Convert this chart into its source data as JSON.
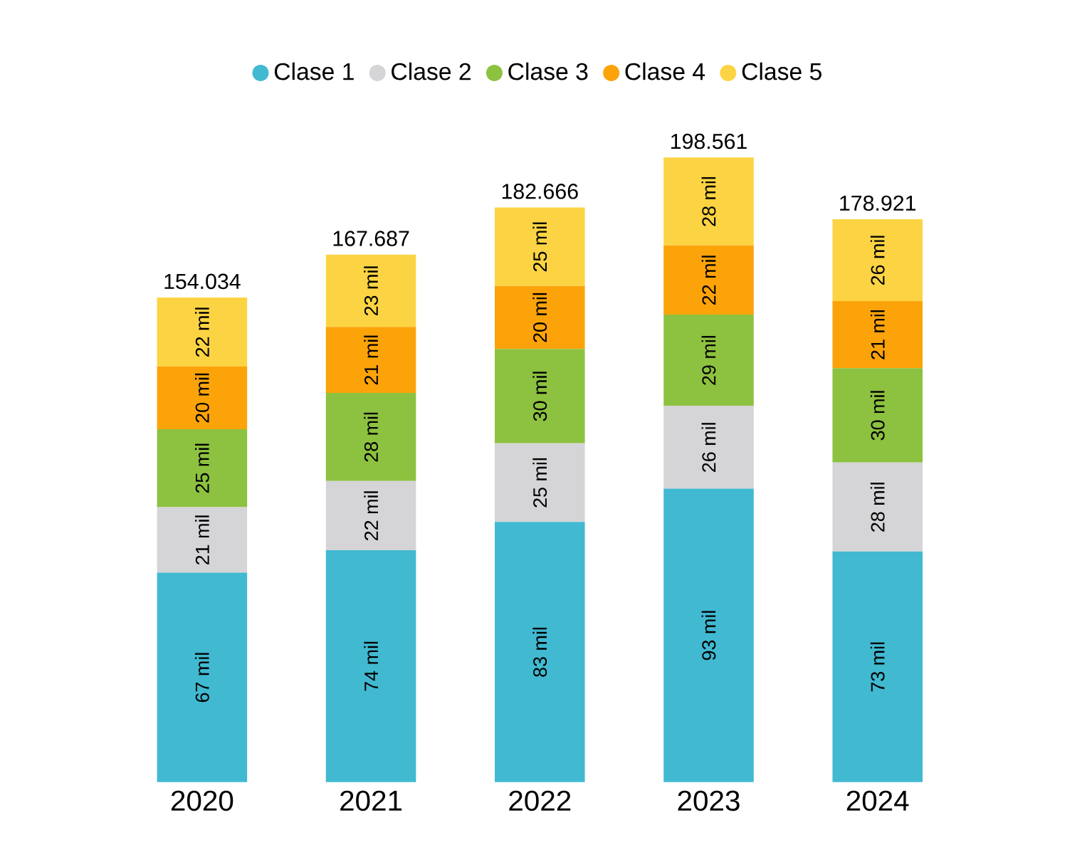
{
  "chart_data": {
    "type": "bar",
    "stacked": true,
    "legend": "top",
    "data_labels": false,
    "categories": [
      "2020",
      "2021",
      "2022",
      "2023",
      "2024"
    ],
    "series": [
      {
        "name": "Clase 1",
        "color": "#41b9d1",
        "values": [
          66.6,
          73.7,
          82.7,
          93.3,
          73.3
        ],
        "value_labels": [
          "67 mil",
          "74 mil",
          "83 mil",
          "93 mil",
          "73 mil"
        ]
      },
      {
        "name": "Clase 2",
        "color": "#d5d4d6",
        "values": [
          20.8,
          22,
          25,
          26.3,
          28.3
        ],
        "value_labels": [
          "21 mil",
          "22 mil",
          "25 mil",
          "26 mil",
          "28 mil"
        ]
      },
      {
        "name": "Clase 3",
        "color": "#8dc140",
        "values": [
          24.8,
          28,
          30,
          29,
          30
        ],
        "value_labels": [
          "25 mil",
          "28 mil",
          "30 mil",
          "29 mil",
          "30 mil"
        ]
      },
      {
        "name": "Clase 4",
        "color": "#fca30a",
        "values": [
          19.9,
          21,
          20,
          22,
          21.3
        ],
        "value_labels": [
          "20 mil",
          "21 mil",
          "20 mil",
          "22 mil",
          "21 mil"
        ]
      },
      {
        "name": "Clase 5",
        "color": "#fcd443",
        "values": [
          21.934,
          22.987,
          24.966,
          27.961,
          26.021
        ],
        "value_labels": [
          "22 mil",
          "23 mil",
          "25 mil",
          "28 mil",
          "26 mil"
        ]
      }
    ],
    "totals": [
      "154.034",
      "167.687",
      "182.666",
      "198.561",
      "178.921"
    ]
  }
}
